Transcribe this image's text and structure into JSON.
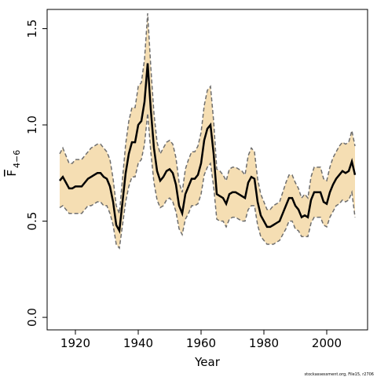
{
  "chart_data": {
    "type": "line",
    "xlabel": "Year",
    "ylabel": {
      "text": "F",
      "subscript": "4−6"
    },
    "footnote": "stockassessment.org, File15, r2706",
    "x": [
      1915,
      1916,
      1917,
      1918,
      1919,
      1920,
      1921,
      1922,
      1923,
      1924,
      1925,
      1926,
      1927,
      1928,
      1929,
      1930,
      1931,
      1932,
      1933,
      1934,
      1935,
      1936,
      1937,
      1938,
      1939,
      1940,
      1941,
      1942,
      1943,
      1944,
      1945,
      1946,
      1947,
      1948,
      1949,
      1950,
      1951,
      1952,
      1953,
      1954,
      1955,
      1956,
      1957,
      1958,
      1959,
      1960,
      1961,
      1962,
      1963,
      1964,
      1965,
      1966,
      1967,
      1968,
      1969,
      1970,
      1971,
      1972,
      1973,
      1974,
      1975,
      1976,
      1977,
      1978,
      1979,
      1980,
      1981,
      1982,
      1983,
      1984,
      1985,
      1986,
      1987,
      1988,
      1989,
      1990,
      1991,
      1992,
      1993,
      1994,
      1995,
      1996,
      1997,
      1998,
      1999,
      2000,
      2001,
      2002,
      2003,
      2004,
      2005,
      2006,
      2007,
      2008,
      2009
    ],
    "series": [
      {
        "color": "#000000",
        "values": [
          0.71,
          0.73,
          0.7,
          0.67,
          0.67,
          0.68,
          0.68,
          0.68,
          0.7,
          0.72,
          0.73,
          0.74,
          0.75,
          0.75,
          0.73,
          0.72,
          0.68,
          0.6,
          0.48,
          0.45,
          0.6,
          0.75,
          0.85,
          0.91,
          0.91,
          1.0,
          1.02,
          1.12,
          1.32,
          1.08,
          0.88,
          0.76,
          0.71,
          0.73,
          0.76,
          0.77,
          0.75,
          0.69,
          0.58,
          0.54,
          0.64,
          0.68,
          0.72,
          0.72,
          0.74,
          0.8,
          0.92,
          0.98,
          1.0,
          0.85,
          0.64,
          0.63,
          0.62,
          0.59,
          0.64,
          0.65,
          0.65,
          0.64,
          0.63,
          0.62,
          0.7,
          0.73,
          0.72,
          0.6,
          0.53,
          0.5,
          0.47,
          0.47,
          0.48,
          0.49,
          0.5,
          0.54,
          0.58,
          0.62,
          0.62,
          0.58,
          0.56,
          0.52,
          0.53,
          0.52,
          0.61,
          0.65,
          0.65,
          0.65,
          0.6,
          0.59,
          0.65,
          0.69,
          0.72,
          0.74,
          0.76,
          0.75,
          0.76,
          0.81,
          0.74
        ]
      }
    ],
    "band": {
      "color": "#f5deb3",
      "edge_color": "#6e6e6e",
      "upper": [
        0.85,
        0.88,
        0.84,
        0.8,
        0.8,
        0.82,
        0.82,
        0.82,
        0.84,
        0.86,
        0.88,
        0.89,
        0.9,
        0.9,
        0.88,
        0.86,
        0.82,
        0.72,
        0.58,
        0.54,
        0.72,
        0.9,
        1.02,
        1.09,
        1.09,
        1.2,
        1.22,
        1.34,
        1.58,
        1.3,
        1.06,
        0.91,
        0.85,
        0.88,
        0.91,
        0.92,
        0.9,
        0.83,
        0.7,
        0.65,
        0.77,
        0.82,
        0.86,
        0.86,
        0.89,
        0.96,
        1.1,
        1.18,
        1.2,
        1.02,
        0.77,
        0.76,
        0.74,
        0.71,
        0.77,
        0.78,
        0.78,
        0.77,
        0.76,
        0.74,
        0.84,
        0.88,
        0.86,
        0.72,
        0.64,
        0.6,
        0.56,
        0.56,
        0.58,
        0.59,
        0.6,
        0.65,
        0.7,
        0.74,
        0.74,
        0.7,
        0.67,
        0.62,
        0.64,
        0.62,
        0.73,
        0.78,
        0.78,
        0.78,
        0.72,
        0.71,
        0.78,
        0.83,
        0.86,
        0.89,
        0.91,
        0.9,
        0.91,
        0.97,
        0.89
      ],
      "lower": [
        0.57,
        0.58,
        0.56,
        0.54,
        0.54,
        0.54,
        0.54,
        0.54,
        0.56,
        0.58,
        0.58,
        0.59,
        0.6,
        0.6,
        0.58,
        0.58,
        0.54,
        0.48,
        0.38,
        0.36,
        0.48,
        0.6,
        0.68,
        0.73,
        0.73,
        0.8,
        0.82,
        0.9,
        1.06,
        0.86,
        0.7,
        0.61,
        0.57,
        0.58,
        0.61,
        0.62,
        0.6,
        0.55,
        0.46,
        0.43,
        0.51,
        0.54,
        0.58,
        0.58,
        0.59,
        0.64,
        0.74,
        0.78,
        0.8,
        0.68,
        0.51,
        0.5,
        0.5,
        0.47,
        0.51,
        0.52,
        0.52,
        0.51,
        0.5,
        0.5,
        0.56,
        0.58,
        0.58,
        0.48,
        0.42,
        0.4,
        0.38,
        0.38,
        0.38,
        0.39,
        0.4,
        0.43,
        0.46,
        0.5,
        0.5,
        0.46,
        0.45,
        0.42,
        0.42,
        0.42,
        0.49,
        0.52,
        0.52,
        0.52,
        0.48,
        0.47,
        0.52,
        0.55,
        0.58,
        0.59,
        0.61,
        0.6,
        0.61,
        0.65,
        0.52
      ]
    },
    "xlim": [
      1911,
      2013
    ],
    "ylim": [
      -0.065,
      1.6
    ],
    "xticks": [
      1920,
      1940,
      1960,
      1980,
      2000
    ],
    "yticks": [
      {
        "value": 0,
        "label": "0.0"
      },
      {
        "value": 0.5,
        "label": "0.5"
      },
      {
        "value": 1,
        "label": "1.0"
      },
      {
        "value": 1.5,
        "label": "1.5"
      }
    ]
  }
}
